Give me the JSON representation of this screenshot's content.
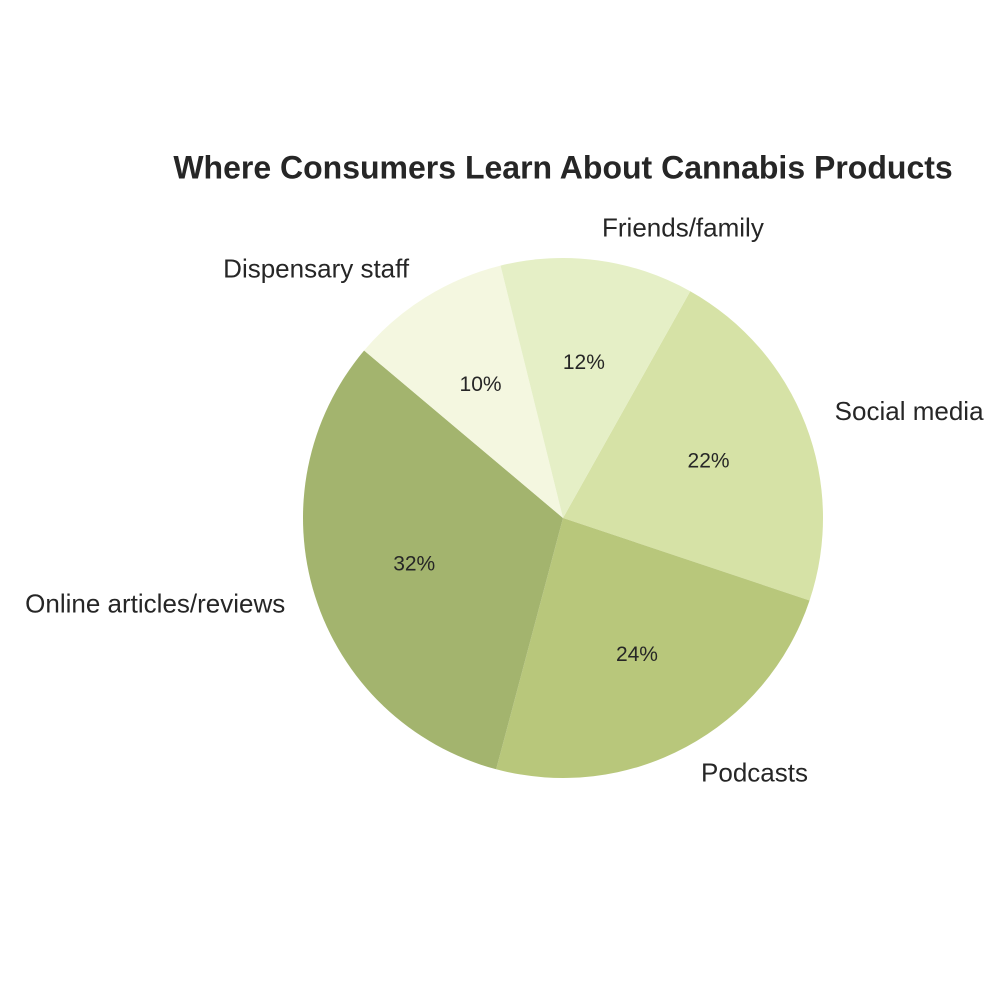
{
  "chart_data": {
    "type": "pie",
    "title": "Where Consumers Learn About Cannabis Products",
    "categories": [
      "Social media",
      "Podcasts",
      "Online articles/reviews",
      "Dispensary staff",
      "Friends/family"
    ],
    "values": [
      22,
      24,
      32,
      10,
      12
    ],
    "value_labels": [
      "22%",
      "24%",
      "32%",
      "10%",
      "12%"
    ],
    "colors": [
      "#d6e2a6",
      "#b8c77b",
      "#a3b46e",
      "#f4f7e0",
      "#e5efc6"
    ]
  }
}
